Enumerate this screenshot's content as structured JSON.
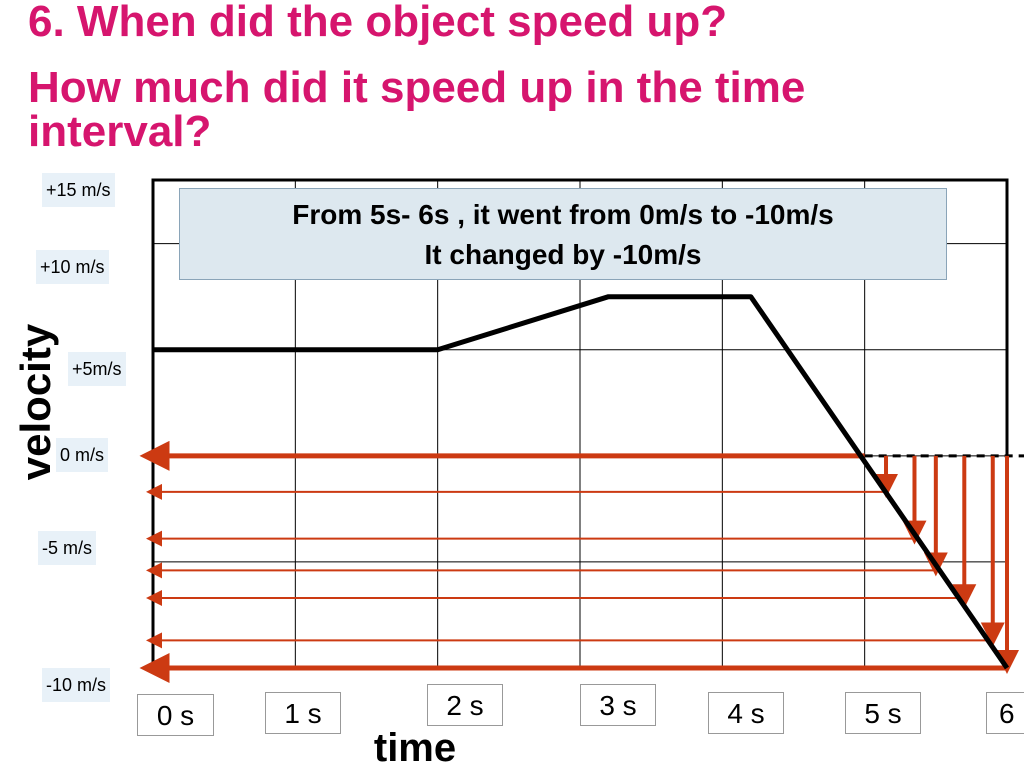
{
  "slide": {
    "title_line1": "6. When did the object speed up?",
    "title_line2": "How much did it speed up in the time",
    "title_line3": "interval?",
    "title_color": "#d6156e"
  },
  "callout": {
    "line1": "From 5s- 6s , it went from 0m/s to -10m/s",
    "line2": "It changed by -10m/s"
  },
  "chart_data": {
    "type": "line",
    "xlabel": "time",
    "ylabel": "velocity",
    "x_tick_labels": [
      "0 s",
      "1 s",
      "2 s",
      "3 s",
      "4 s",
      "5 s",
      "6"
    ],
    "y_tick_labels": [
      "+15 m/s",
      "+10 m/s",
      "+5m/s",
      "0 m/s",
      "-5 m/s",
      "-10 m/s"
    ],
    "xlim": [
      0,
      6
    ],
    "ylim": [
      -10,
      13
    ],
    "grid": true,
    "series": [
      {
        "x": [
          0,
          2,
          3.2,
          4.2,
          6
        ],
        "y": [
          5,
          5,
          7.5,
          7.5,
          -10
        ]
      }
    ],
    "annotation_arrows": {
      "color": "#cc3a12",
      "zero_line_arrow": {
        "from_x": 5,
        "to_x": 0,
        "y": 0
      },
      "bottom_line_arrow": {
        "from_x": 6,
        "to_x": 0,
        "y": -10
      },
      "horizontal_arrows_y": [
        -1.7,
        -3.9,
        -5.4,
        -6.7,
        -8.7
      ],
      "horizontal_arrows_from_x": [
        5.15,
        5.35,
        5.5,
        5.7,
        5.9
      ],
      "vertical_arrows": [
        {
          "x": 5.15,
          "to_y": -1.7
        },
        {
          "x": 5.35,
          "to_y": -3.9
        },
        {
          "x": 5.5,
          "to_y": -5.4
        },
        {
          "x": 5.7,
          "to_y": -6.9
        },
        {
          "x": 5.9,
          "to_y": -8.7
        },
        {
          "x": 6.0,
          "to_y": -10
        }
      ]
    }
  }
}
